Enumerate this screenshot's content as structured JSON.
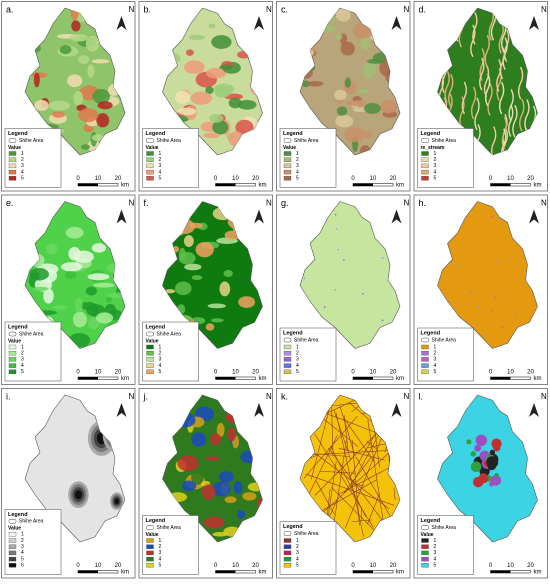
{
  "panels": [
    {
      "label": "a.",
      "north": "N",
      "legend_title": "Legend",
      "area": "Shihe Area",
      "value_title": "Value",
      "items": [
        "1",
        "2",
        "3",
        "4",
        "5"
      ],
      "base": "#8fc46a",
      "colors": [
        "#4a9a3c",
        "#b5d98a",
        "#f2ddb0",
        "#e07a4a",
        "#b3261e"
      ],
      "scale": [
        "0",
        "10",
        "20",
        "km"
      ]
    },
    {
      "label": "b.",
      "north": "N",
      "legend_title": "Legend",
      "area": "Shihe Area",
      "value_title": "Value",
      "items": [
        "1",
        "2",
        "3",
        "4",
        "5"
      ],
      "base": "#c9dc9c",
      "colors": [
        "#3f8f3a",
        "#9fcd7a",
        "#f1e3b4",
        "#ef9b7a",
        "#d9544a"
      ],
      "scale": [
        "0",
        "10",
        "20",
        "km"
      ]
    },
    {
      "label": "c.",
      "north": "N",
      "legend_title": "Legend",
      "area": "Shihe Area",
      "value_title": "Value",
      "items": [
        "1",
        "2",
        "3",
        "4",
        "5"
      ],
      "base": "#b9a57a",
      "colors": [
        "#4f8e3d",
        "#9fbf74",
        "#d9c79a",
        "#c98f6a",
        "#a8684a"
      ],
      "scale": [
        "0",
        "10",
        "20",
        "km"
      ]
    },
    {
      "label": "d.",
      "north": "N",
      "legend_title": "Legend",
      "area": "Shihe Area",
      "value_title": "re_stream",
      "items": [
        "1",
        "2",
        "3",
        "4",
        "5"
      ],
      "base": "#2e7d1f",
      "colors": [
        "#2e7d1f",
        "#e9dcb5",
        "#f4c9a0",
        "#d8b070",
        "#c04030"
      ],
      "scale": [
        "0",
        "10",
        "20",
        "km"
      ]
    },
    {
      "label": "e.",
      "north": "N",
      "legend_title": "Legend",
      "area": "Shihe Area",
      "value_title": "Value",
      "items": [
        "1",
        "2",
        "3",
        "4",
        "5"
      ],
      "base": "#4fd24a",
      "colors": [
        "#e8f8e0",
        "#a8ec98",
        "#6ad860",
        "#38c038",
        "#1f9a2a"
      ],
      "scale": [
        "0",
        "10",
        "20",
        "km"
      ]
    },
    {
      "label": "f.",
      "north": "N",
      "legend_title": "Legend",
      "area": "Shihe Area",
      "value_title": "Value",
      "items": [
        "1",
        "2",
        "3",
        "4",
        "5"
      ],
      "base": "#0f7a10",
      "colors": [
        "#0f7a10",
        "#5fbf4a",
        "#b9e39a",
        "#e8d48a",
        "#f0a060"
      ],
      "scale": [
        "0",
        "10",
        "20",
        "km"
      ]
    },
    {
      "label": "g.",
      "north": "N",
      "legend_title": "Legend",
      "area": "Shihe Area",
      "items": [
        "1",
        "2",
        "3",
        "4",
        "5"
      ],
      "base": "#c6e6a0",
      "colors": [
        "#c6e6a0",
        "#b58ad8",
        "#8a6ad0",
        "#5a7ad8",
        "#d8c060"
      ],
      "scale": [
        "0",
        "10",
        "20",
        "km"
      ]
    },
    {
      "label": "h.",
      "north": "N",
      "legend_title": "Legend",
      "area": "Shihe Area",
      "items": [
        "1",
        "2",
        "3",
        "4",
        "5"
      ],
      "base": "#e49a10",
      "colors": [
        "#e49a10",
        "#9a7ad0",
        "#c060c0",
        "#6a9ad8",
        "#d8d050"
      ],
      "scale": [
        "0",
        "10",
        "20",
        "km"
      ]
    },
    {
      "label": "i.",
      "north": "N",
      "legend_title": "Legend",
      "area": "Shihe Area",
      "value_title": "Value",
      "items": [
        "1",
        "2",
        "3",
        "4",
        "5",
        "6"
      ],
      "base": "#e4e4e4",
      "colors": [
        "#f2f2f2",
        "#cfcfcf",
        "#a8a8a8",
        "#7a7a7a",
        "#444444",
        "#111111"
      ],
      "scale": [
        "0",
        "10",
        "20",
        "km"
      ]
    },
    {
      "label": "j.",
      "north": "N",
      "legend_title": "Legend",
      "area": "Shihe Area",
      "value_title": "Value",
      "items": [
        "1",
        "2",
        "3",
        "4",
        "5"
      ],
      "base": "#2f7a1e",
      "colors": [
        "#d4a018",
        "#1a4ac0",
        "#c03030",
        "#2f7a1e",
        "#e0d020"
      ],
      "scale": [
        "0",
        "10",
        "20",
        "km"
      ]
    },
    {
      "label": "k.",
      "north": "N",
      "legend_title": "Legend",
      "area": "Shihe Area",
      "items": [
        "1",
        "2",
        "3",
        "4",
        "5"
      ],
      "base": "#f5c20a",
      "colors": [
        "#8a3a2a",
        "#3040a0",
        "#c02060",
        "#20a040",
        "#f5c20a"
      ],
      "scale": [
        "0",
        "10",
        "20",
        "km"
      ]
    },
    {
      "label": "l.",
      "north": "N",
      "legend_title": "Legend",
      "area": "Shihe Area",
      "value_title": "Value",
      "items": [
        "1",
        "2",
        "3",
        "4",
        "5"
      ],
      "base": "#3cd4e4",
      "colors": [
        "#222222",
        "#c03030",
        "#30a040",
        "#9a50c0",
        "#3cd4e4"
      ],
      "scale": [
        "0",
        "10",
        "20",
        "km"
      ]
    }
  ]
}
